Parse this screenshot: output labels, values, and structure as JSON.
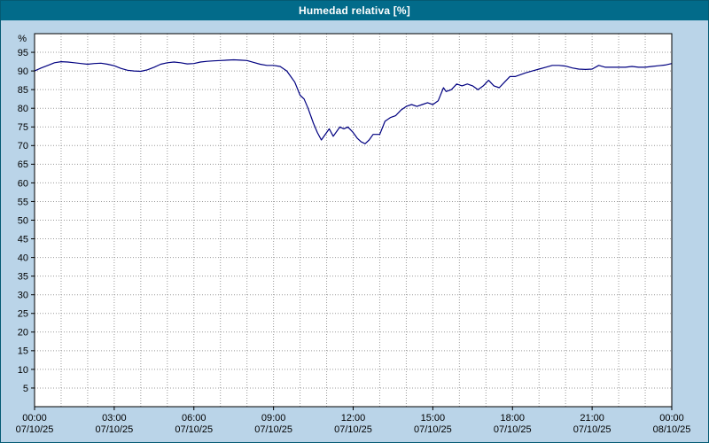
{
  "window": {
    "title": "Humedad relativa [%]"
  },
  "colors": {
    "title_bar": "#026b8a",
    "title_text": "#ffffff",
    "background": "#bad4e8",
    "plot_background": "#ffffff",
    "grid": "#999999",
    "axis": "#000000",
    "line": "#000080"
  },
  "chart_data": {
    "type": "line",
    "title": "Humedad relativa [%]",
    "xlabel": "",
    "ylabel": "%",
    "ylim": [
      0,
      100
    ],
    "x_hours_total": 24,
    "grid": "dotted",
    "legend_position": "none",
    "y_ticks": [
      5,
      10,
      15,
      20,
      25,
      30,
      35,
      40,
      45,
      50,
      55,
      60,
      65,
      70,
      75,
      80,
      85,
      90,
      95
    ],
    "x_ticks": [
      {
        "hour": 0,
        "time": "00:00",
        "date": "07/10/25"
      },
      {
        "hour": 3,
        "time": "03:00",
        "date": "07/10/25"
      },
      {
        "hour": 6,
        "time": "06:00",
        "date": "07/10/25"
      },
      {
        "hour": 9,
        "time": "09:00",
        "date": "07/10/25"
      },
      {
        "hour": 12,
        "time": "12:00",
        "date": "07/10/25"
      },
      {
        "hour": 15,
        "time": "15:00",
        "date": "07/10/25"
      },
      {
        "hour": 18,
        "time": "18:00",
        "date": "07/10/25"
      },
      {
        "hour": 21,
        "time": "21:00",
        "date": "07/10/25"
      },
      {
        "hour": 24,
        "time": "00:00",
        "date": "08/10/25"
      }
    ],
    "series": [
      {
        "name": "Humedad relativa",
        "color": "#000080",
        "x": [
          0,
          0.25,
          0.5,
          0.75,
          1,
          1.25,
          1.5,
          1.75,
          2,
          2.25,
          2.5,
          2.75,
          3,
          3.25,
          3.5,
          3.75,
          4,
          4.25,
          4.5,
          4.75,
          5,
          5.25,
          5.5,
          5.75,
          6,
          6.25,
          6.5,
          6.75,
          7,
          7.25,
          7.5,
          7.75,
          8,
          8.25,
          8.5,
          8.75,
          9,
          9.25,
          9.5,
          9.65,
          9.8,
          10,
          10.15,
          10.3,
          10.5,
          10.65,
          10.8,
          11,
          11.1,
          11.25,
          11.4,
          11.5,
          11.65,
          11.8,
          12,
          12.15,
          12.3,
          12.45,
          12.6,
          12.75,
          13,
          13.2,
          13.4,
          13.6,
          13.8,
          14,
          14.2,
          14.4,
          14.6,
          14.8,
          15,
          15.2,
          15.4,
          15.5,
          15.7,
          15.9,
          16.1,
          16.3,
          16.5,
          16.7,
          16.9,
          17.1,
          17.3,
          17.5,
          17.7,
          17.9,
          18.1,
          18.3,
          18.5,
          18.75,
          19,
          19.25,
          19.5,
          19.75,
          20,
          20.25,
          20.5,
          20.75,
          21,
          21.25,
          21.5,
          21.75,
          22,
          22.25,
          22.5,
          22.75,
          23,
          23.25,
          23.5,
          23.75,
          24
        ],
        "y": [
          90.0,
          90.8,
          91.5,
          92.2,
          92.5,
          92.4,
          92.2,
          92.0,
          91.8,
          92.0,
          92.1,
          91.8,
          91.4,
          90.7,
          90.2,
          90.0,
          89.9,
          90.3,
          91.0,
          91.8,
          92.2,
          92.4,
          92.2,
          91.9,
          92.0,
          92.4,
          92.6,
          92.7,
          92.8,
          92.9,
          93.0,
          92.9,
          92.8,
          92.3,
          91.8,
          91.5,
          91.5,
          91.2,
          90.0,
          88.5,
          87.0,
          83.5,
          82.5,
          80.0,
          76.0,
          73.5,
          71.5,
          73.5,
          74.5,
          72.5,
          74.0,
          75.0,
          74.5,
          75.0,
          73.5,
          72.0,
          71.0,
          70.5,
          71.5,
          73.0,
          73.0,
          76.5,
          77.5,
          78.0,
          79.5,
          80.5,
          81.0,
          80.5,
          81.0,
          81.5,
          81.0,
          82.0,
          85.5,
          84.5,
          85.0,
          86.5,
          86.0,
          86.5,
          86.0,
          85.0,
          86.0,
          87.5,
          86.0,
          85.5,
          87.0,
          88.5,
          88.5,
          89.0,
          89.5,
          90.0,
          90.5,
          91.0,
          91.5,
          91.5,
          91.3,
          90.8,
          90.5,
          90.4,
          90.5,
          91.5,
          91.0,
          91.0,
          91.0,
          91.0,
          91.2,
          91.0,
          91.0,
          91.2,
          91.4,
          91.6,
          92.0
        ]
      }
    ]
  }
}
